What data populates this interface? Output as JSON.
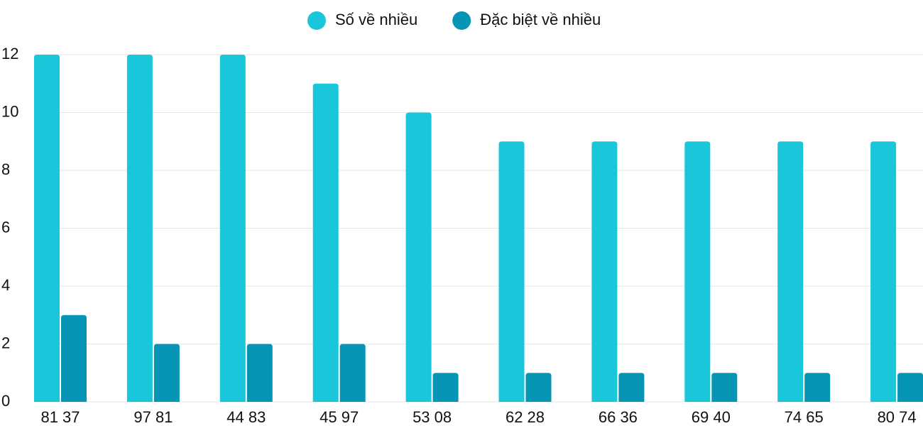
{
  "chart_data": {
    "type": "bar",
    "categories": [
      "81 37",
      "97 81",
      "44 83",
      "45 97",
      "53 08",
      "62 28",
      "66 36",
      "69 40",
      "74 65",
      "80 74"
    ],
    "series": [
      {
        "name": "Số về nhiều",
        "color": "#1ac6da",
        "values": [
          12,
          12,
          12,
          11,
          10,
          9,
          9,
          9,
          9,
          9
        ]
      },
      {
        "name": "Đặc biệt về nhiều",
        "color": "#0695b5",
        "values": [
          3,
          2,
          2,
          2,
          1,
          1,
          1,
          1,
          1,
          1
        ]
      }
    ],
    "ylim": [
      0,
      12
    ],
    "yticks": [
      0,
      2,
      4,
      6,
      8,
      10,
      12
    ],
    "grid": true,
    "legend": "top"
  }
}
